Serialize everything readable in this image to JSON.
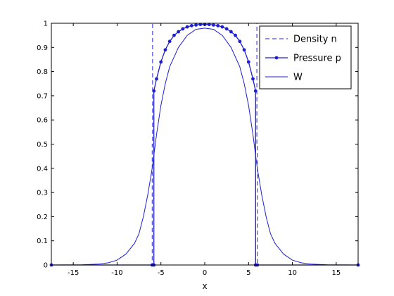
{
  "chart_data": {
    "type": "line",
    "title": "",
    "xlabel": "x",
    "ylabel": "",
    "xlim": [
      -17.5,
      17.5
    ],
    "ylim": [
      0,
      1
    ],
    "xticks": [
      -15,
      -10,
      -5,
      0,
      5,
      10,
      15
    ],
    "yticks": [
      0,
      0.1,
      0.2,
      0.3,
      0.4,
      0.5,
      0.6,
      0.7,
      0.8,
      0.9,
      1
    ],
    "xtick_labels": [
      "-15",
      "-10",
      "-5",
      "0",
      "5",
      "10",
      "15"
    ],
    "ytick_labels": [
      "0",
      "0.1",
      "0.2",
      "0.3",
      "0.4",
      "0.5",
      "0.6",
      "0.7",
      "0.8",
      "0.9",
      "1"
    ],
    "grid": false,
    "legend_position": "top-right",
    "line_color": "#1f1fd1",
    "series": [
      {
        "name": "Density n",
        "style": "dashed",
        "x": [
          -17.5,
          -6.0,
          -6.0,
          -5.95,
          -5.95,
          5.95,
          5.95,
          6.0,
          6.0,
          17.5
        ],
        "y": [
          0,
          0,
          0.5,
          0.5,
          1.0,
          1.0,
          0.5,
          0.5,
          0,
          0
        ]
      },
      {
        "name": "Pressure p",
        "style": "solid-markers",
        "x": [
          -17.5,
          -6.0,
          -5.8,
          -5.8,
          -5.5,
          -5.0,
          -4.5,
          -4.0,
          -3.5,
          -3.0,
          -2.5,
          -2.0,
          -1.5,
          -1.0,
          -0.5,
          0,
          0.5,
          1.0,
          1.5,
          2.0,
          2.5,
          3.0,
          3.5,
          4.0,
          4.5,
          5.0,
          5.5,
          5.8,
          5.8,
          6.0,
          17.5
        ],
        "y": [
          0,
          0,
          0,
          0.72,
          0.77,
          0.84,
          0.89,
          0.925,
          0.95,
          0.965,
          0.977,
          0.985,
          0.99,
          0.993,
          0.995,
          0.995,
          0.995,
          0.993,
          0.99,
          0.985,
          0.977,
          0.965,
          0.95,
          0.925,
          0.89,
          0.84,
          0.77,
          0.72,
          0,
          0,
          0
        ]
      },
      {
        "name": "W",
        "style": "solid",
        "x": [
          -17.5,
          -14,
          -12,
          -11,
          -10,
          -9,
          -8,
          -7.5,
          -7,
          -6.5,
          -6,
          -5.5,
          -5,
          -4.5,
          -4,
          -3,
          -2,
          -1,
          0,
          1,
          2,
          3,
          4,
          4.5,
          5,
          5.5,
          6,
          6.5,
          7,
          7.5,
          8,
          9,
          10,
          11,
          12,
          14,
          17.5
        ],
        "y": [
          0,
          0.001,
          0.004,
          0.009,
          0.02,
          0.045,
          0.09,
          0.13,
          0.2,
          0.29,
          0.4,
          0.54,
          0.66,
          0.75,
          0.82,
          0.9,
          0.95,
          0.975,
          0.98,
          0.975,
          0.95,
          0.9,
          0.82,
          0.75,
          0.66,
          0.54,
          0.4,
          0.29,
          0.2,
          0.13,
          0.09,
          0.045,
          0.02,
          0.009,
          0.004,
          0.001,
          0
        ]
      }
    ]
  }
}
